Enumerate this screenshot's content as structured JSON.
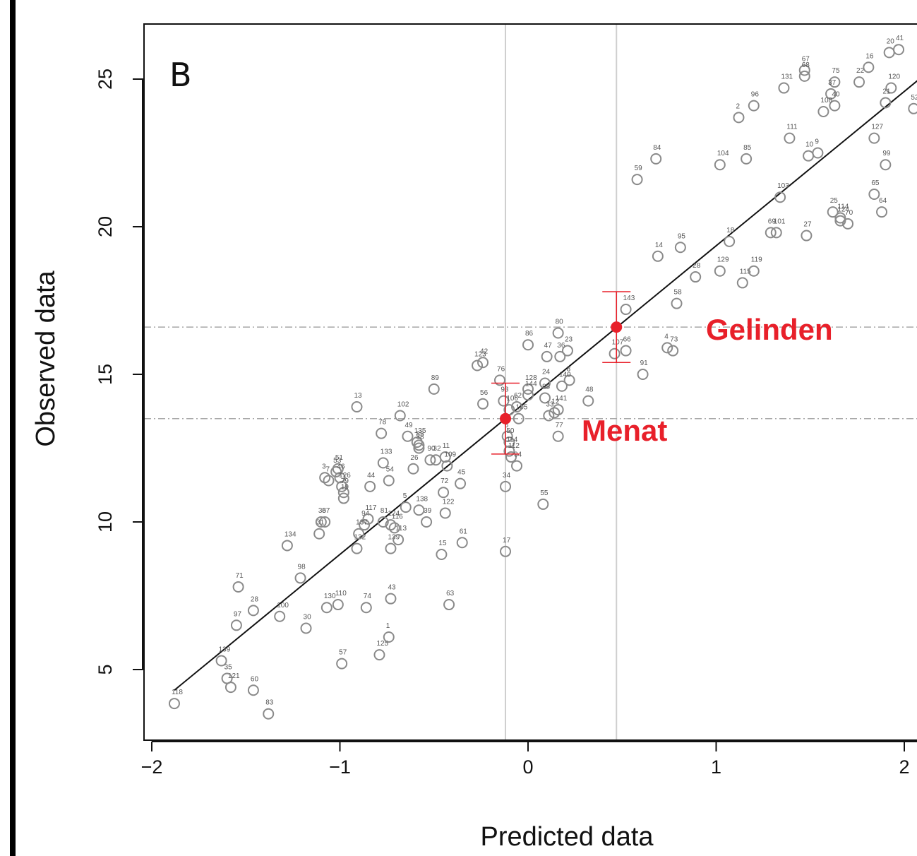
{
  "chart_data": {
    "type": "scatter",
    "panel_label": "B",
    "xlabel": "Predicted data",
    "ylabel": "Observed data",
    "xlim": [
      -2.05,
      2.08
    ],
    "ylim": [
      2.6,
      26.8
    ],
    "x_ticks": [
      {
        "value": -2,
        "label": "−2"
      },
      {
        "value": -1,
        "label": "−1"
      },
      {
        "value": 0,
        "label": "0"
      },
      {
        "value": 1,
        "label": "1"
      },
      {
        "value": 2,
        "label": "2"
      }
    ],
    "y_ticks": [
      {
        "value": 5,
        "label": "5"
      },
      {
        "value": 10,
        "label": "10"
      },
      {
        "value": 15,
        "label": "15"
      },
      {
        "value": 20,
        "label": "20"
      },
      {
        "value": 25,
        "label": "25"
      }
    ],
    "fit_line": {
      "x1": -1.88,
      "y1": 4.3,
      "x2": 2.08,
      "y2": 25.0
    },
    "reference_lines": {
      "vertical": [
        -0.12,
        0.47
      ],
      "horizontal": [
        13.5,
        16.6
      ]
    },
    "highlights": [
      {
        "name": "Gelinden",
        "x": 0.47,
        "y": 16.6,
        "ylo": 15.4,
        "yhi": 17.8
      },
      {
        "name": "Menat",
        "x": -0.12,
        "y": 13.5,
        "ylo": 12.3,
        "yhi": 14.7
      }
    ],
    "points": [
      {
        "label": "118",
        "x": -1.88,
        "y": 3.85
      },
      {
        "label": "83",
        "x": -1.38,
        "y": 3.5
      },
      {
        "label": "60",
        "x": -1.46,
        "y": 4.3
      },
      {
        "label": "121",
        "x": -1.58,
        "y": 4.4
      },
      {
        "label": "35",
        "x": -1.6,
        "y": 4.7
      },
      {
        "label": "139",
        "x": -1.63,
        "y": 5.3
      },
      {
        "label": "97",
        "x": -1.55,
        "y": 6.5
      },
      {
        "label": "28",
        "x": -1.46,
        "y": 7.0
      },
      {
        "label": "71",
        "x": -1.54,
        "y": 7.8
      },
      {
        "label": "100",
        "x": -1.32,
        "y": 6.8
      },
      {
        "label": "30",
        "x": -1.18,
        "y": 6.4
      },
      {
        "label": "98",
        "x": -1.21,
        "y": 8.1
      },
      {
        "label": "134",
        "x": -1.28,
        "y": 9.2
      },
      {
        "label": "57",
        "x": -0.99,
        "y": 5.2
      },
      {
        "label": "130",
        "x": -1.07,
        "y": 7.1
      },
      {
        "label": "110",
        "x": -1.01,
        "y": 7.2
      },
      {
        "label": "74",
        "x": -0.86,
        "y": 7.1
      },
      {
        "label": "125",
        "x": -0.79,
        "y": 5.5
      },
      {
        "label": "1",
        "x": -0.74,
        "y": 6.1
      },
      {
        "label": "43",
        "x": -0.73,
        "y": 7.4
      },
      {
        "label": "63",
        "x": -0.42,
        "y": 7.2
      },
      {
        "label": "15",
        "x": -0.46,
        "y": 8.9
      },
      {
        "label": "61",
        "x": -0.35,
        "y": 9.3
      },
      {
        "label": "132",
        "x": -0.91,
        "y": 9.1
      },
      {
        "label": "139b",
        "x": -0.73,
        "y": 9.1
      },
      {
        "label": "113",
        "x": -0.69,
        "y": 9.4
      },
      {
        "label": "31",
        "x": -1.11,
        "y": 9.6
      },
      {
        "label": "36",
        "x": -1.1,
        "y": 10.0
      },
      {
        "label": "87",
        "x": -1.08,
        "y": 10.0
      },
      {
        "label": "94",
        "x": -0.87,
        "y": 9.9
      },
      {
        "label": "117",
        "x": -0.85,
        "y": 10.1
      },
      {
        "label": "81",
        "x": -0.77,
        "y": 10.0
      },
      {
        "label": "124",
        "x": -0.73,
        "y": 9.9
      },
      {
        "label": "116",
        "x": -0.71,
        "y": 9.8
      },
      {
        "label": "137",
        "x": -0.9,
        "y": 9.6
      },
      {
        "label": "39",
        "x": -0.54,
        "y": 10.0
      },
      {
        "label": "122",
        "x": -0.44,
        "y": 10.3
      },
      {
        "label": "138",
        "x": -0.58,
        "y": 10.4
      },
      {
        "label": "5",
        "x": -0.65,
        "y": 10.5
      },
      {
        "label": "72",
        "x": -0.45,
        "y": 11.0
      },
      {
        "label": "45",
        "x": -0.36,
        "y": 11.3
      },
      {
        "label": "44",
        "x": -0.84,
        "y": 11.2
      },
      {
        "label": "54",
        "x": -0.74,
        "y": 11.4
      },
      {
        "label": "133",
        "x": -0.77,
        "y": 12.0
      },
      {
        "label": "26",
        "x": -0.61,
        "y": 11.8
      },
      {
        "label": "3",
        "x": -1.08,
        "y": 11.5
      },
      {
        "label": "7",
        "x": -1.06,
        "y": 11.4
      },
      {
        "label": "51",
        "x": -1.01,
        "y": 11.8
      },
      {
        "label": "53",
        "x": -1.02,
        "y": 11.7
      },
      {
        "label": "46",
        "x": -1.0,
        "y": 11.5
      },
      {
        "label": "126",
        "x": -0.99,
        "y": 11.2
      },
      {
        "label": "79",
        "x": -0.98,
        "y": 11.0
      },
      {
        "label": "19",
        "x": -0.98,
        "y": 10.8
      },
      {
        "label": "13",
        "x": -0.91,
        "y": 13.9
      },
      {
        "label": "78",
        "x": -0.78,
        "y": 13.0
      },
      {
        "label": "102",
        "x": -0.68,
        "y": 13.6
      },
      {
        "label": "49",
        "x": -0.64,
        "y": 12.9
      },
      {
        "label": "135",
        "x": -0.59,
        "y": 12.7
      },
      {
        "label": "85b",
        "x": -0.58,
        "y": 12.6
      },
      {
        "label": "38",
        "x": -0.58,
        "y": 12.5
      },
      {
        "label": "90",
        "x": -0.52,
        "y": 12.1
      },
      {
        "label": "32",
        "x": -0.49,
        "y": 12.1
      },
      {
        "label": "11",
        "x": -0.44,
        "y": 12.2
      },
      {
        "label": "109",
        "x": -0.43,
        "y": 11.9
      },
      {
        "label": "89",
        "x": -0.5,
        "y": 14.5
      },
      {
        "label": "123",
        "x": -0.27,
        "y": 15.3
      },
      {
        "label": "42",
        "x": -0.24,
        "y": 15.4
      },
      {
        "label": "56",
        "x": -0.24,
        "y": 14.0
      },
      {
        "label": "76",
        "x": -0.15,
        "y": 14.8
      },
      {
        "label": "93",
        "x": -0.13,
        "y": 14.1
      },
      {
        "label": "106",
        "x": -0.1,
        "y": 13.8
      },
      {
        "label": "62",
        "x": -0.06,
        "y": 13.9
      },
      {
        "label": "105",
        "x": -0.05,
        "y": 13.5
      },
      {
        "label": "6",
        "x": -0.11,
        "y": 12.9
      },
      {
        "label": "50",
        "x": -0.1,
        "y": 12.7
      },
      {
        "label": "114",
        "x": -0.1,
        "y": 12.4
      },
      {
        "label": "112",
        "x": -0.09,
        "y": 12.2
      },
      {
        "label": "34b",
        "x": -0.06,
        "y": 11.9
      },
      {
        "label": "34",
        "x": -0.12,
        "y": 11.2
      },
      {
        "label": "17",
        "x": -0.12,
        "y": 9.0
      },
      {
        "label": "55",
        "x": 0.08,
        "y": 10.6
      },
      {
        "label": "86",
        "x": 0.0,
        "y": 16.0
      },
      {
        "label": "80",
        "x": 0.16,
        "y": 16.4
      },
      {
        "label": "47",
        "x": 0.1,
        "y": 15.6
      },
      {
        "label": "36b",
        "x": 0.17,
        "y": 15.6
      },
      {
        "label": "23",
        "x": 0.21,
        "y": 15.8
      },
      {
        "label": "128",
        "x": 0.0,
        "y": 14.5
      },
      {
        "label": "144",
        "x": 0.0,
        "y": 14.3
      },
      {
        "label": "24",
        "x": 0.09,
        "y": 14.7
      },
      {
        "label": "8",
        "x": 0.22,
        "y": 14.8
      },
      {
        "label": "140",
        "x": 0.18,
        "y": 14.6
      },
      {
        "label": "88",
        "x": 0.09,
        "y": 14.2
      },
      {
        "label": "141",
        "x": 0.16,
        "y": 13.8
      },
      {
        "label": "12",
        "x": 0.14,
        "y": 13.7
      },
      {
        "label": "33",
        "x": 0.11,
        "y": 13.6
      },
      {
        "label": "77",
        "x": 0.16,
        "y": 12.9
      },
      {
        "label": "48",
        "x": 0.32,
        "y": 14.1
      },
      {
        "label": "143",
        "x": 0.52,
        "y": 17.2
      },
      {
        "label": "107",
        "x": 0.46,
        "y": 15.7
      },
      {
        "label": "66",
        "x": 0.52,
        "y": 15.8
      },
      {
        "label": "91",
        "x": 0.61,
        "y": 15.0
      },
      {
        "label": "4",
        "x": 0.74,
        "y": 15.9
      },
      {
        "label": "73",
        "x": 0.77,
        "y": 15.8
      },
      {
        "label": "58",
        "x": 0.79,
        "y": 17.4
      },
      {
        "label": "28b",
        "x": 0.89,
        "y": 18.3
      },
      {
        "label": "14",
        "x": 0.69,
        "y": 19.0
      },
      {
        "label": "95",
        "x": 0.81,
        "y": 19.3
      },
      {
        "label": "59",
        "x": 0.58,
        "y": 21.6
      },
      {
        "label": "84",
        "x": 0.68,
        "y": 22.3
      },
      {
        "label": "129",
        "x": 1.02,
        "y": 18.5
      },
      {
        "label": "18",
        "x": 1.07,
        "y": 19.5
      },
      {
        "label": "115",
        "x": 1.14,
        "y": 18.1
      },
      {
        "label": "119",
        "x": 1.2,
        "y": 18.5
      },
      {
        "label": "69",
        "x": 1.29,
        "y": 19.8
      },
      {
        "label": "101",
        "x": 1.32,
        "y": 19.8
      },
      {
        "label": "27",
        "x": 1.48,
        "y": 19.7
      },
      {
        "label": "103",
        "x": 1.34,
        "y": 21.0
      },
      {
        "label": "25",
        "x": 1.62,
        "y": 20.5
      },
      {
        "label": "114b",
        "x": 1.66,
        "y": 20.3
      },
      {
        "label": "124b",
        "x": 1.66,
        "y": 20.2
      },
      {
        "label": "70",
        "x": 1.7,
        "y": 20.1
      },
      {
        "label": "104",
        "x": 1.02,
        "y": 22.1
      },
      {
        "label": "85",
        "x": 1.16,
        "y": 22.3
      },
      {
        "label": "111",
        "x": 1.39,
        "y": 23.0
      },
      {
        "label": "10",
        "x": 1.49,
        "y": 22.4
      },
      {
        "label": "9",
        "x": 1.54,
        "y": 22.5
      },
      {
        "label": "2",
        "x": 1.12,
        "y": 23.7
      },
      {
        "label": "96",
        "x": 1.2,
        "y": 24.1
      },
      {
        "label": "131",
        "x": 1.36,
        "y": 24.7
      },
      {
        "label": "67",
        "x": 1.47,
        "y": 25.3
      },
      {
        "label": "68",
        "x": 1.47,
        "y": 25.1
      },
      {
        "label": "75",
        "x": 1.63,
        "y": 24.9
      },
      {
        "label": "37",
        "x": 1.61,
        "y": 24.5
      },
      {
        "label": "40",
        "x": 1.63,
        "y": 24.1
      },
      {
        "label": "108",
        "x": 1.57,
        "y": 23.9
      },
      {
        "label": "22",
        "x": 1.76,
        "y": 24.9
      },
      {
        "label": "16",
        "x": 1.81,
        "y": 25.4
      },
      {
        "label": "20",
        "x": 1.92,
        "y": 25.9
      },
      {
        "label": "41",
        "x": 1.97,
        "y": 26.0
      },
      {
        "label": "120",
        "x": 1.93,
        "y": 24.7
      },
      {
        "label": "21",
        "x": 1.9,
        "y": 24.2
      },
      {
        "label": "52",
        "x": 2.05,
        "y": 24.0
      },
      {
        "label": "127",
        "x": 1.84,
        "y": 23.0
      },
      {
        "label": "99",
        "x": 1.9,
        "y": 22.1
      },
      {
        "label": "65",
        "x": 1.84,
        "y": 21.1
      },
      {
        "label": "64",
        "x": 1.88,
        "y": 20.5
      }
    ]
  }
}
